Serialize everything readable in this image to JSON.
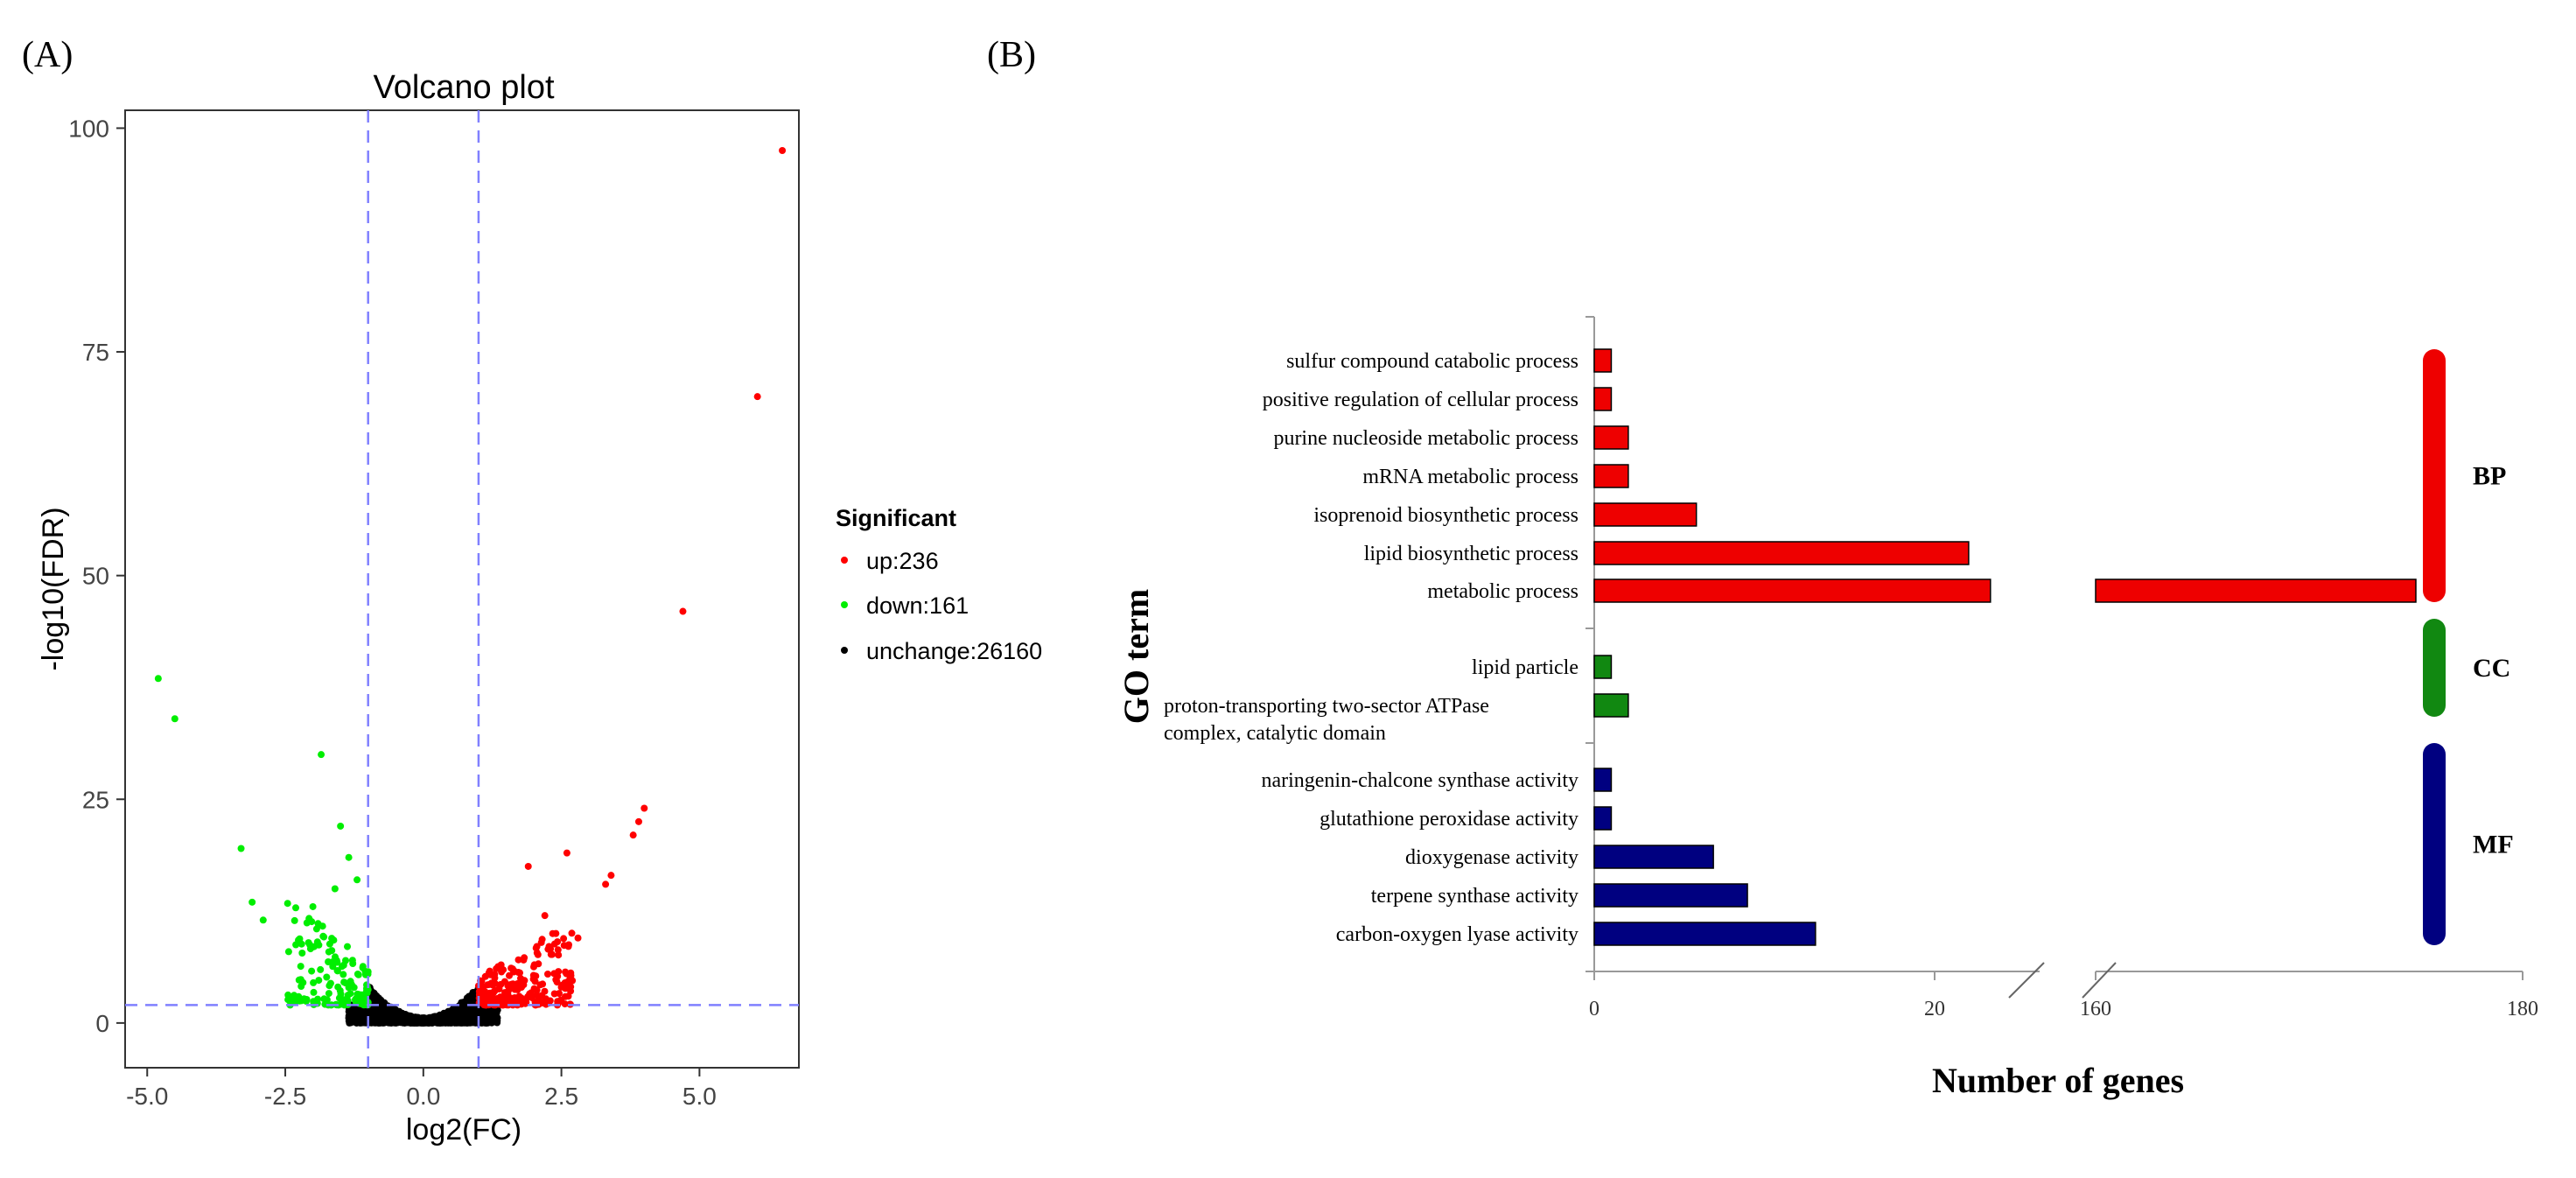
{
  "panel_a": {
    "label": "(A)",
    "chart_data": {
      "type": "scatter",
      "title": "Volcano plot",
      "xlabel": "log2(FC)",
      "ylabel": "-log10(FDR)",
      "xlim": [
        -5.4,
        6.8
      ],
      "ylim": [
        -5,
        102
      ],
      "xticks": [
        -5.0,
        -2.5,
        0.0,
        2.5,
        5.0
      ],
      "xtick_labels": [
        "-5.0",
        "-2.5",
        "0.0",
        "2.5",
        "5.0"
      ],
      "yticks": [
        0,
        25,
        50,
        75,
        100
      ],
      "ytick_labels": [
        "0",
        "25",
        "50",
        "75",
        "100"
      ],
      "thresholds": {
        "log2fc": [
          -1,
          1
        ],
        "neg_log10_fdr": 2
      },
      "legend": {
        "title": "Significant",
        "position": "right",
        "entries": [
          {
            "key": "up",
            "label": "up:236",
            "color": "#ff0000"
          },
          {
            "key": "down",
            "label": "down:161",
            "color": "#00ee00"
          },
          {
            "key": "unchange",
            "label": "unchange:26160",
            "color": "#000000"
          }
        ]
      },
      "notable_points": {
        "up": [
          [
            6.5,
            97.5
          ],
          [
            6.05,
            70
          ],
          [
            4.7,
            46
          ],
          [
            4.0,
            24
          ],
          [
            3.9,
            22.5
          ],
          [
            3.8,
            21
          ],
          [
            3.4,
            16.5
          ],
          [
            3.3,
            15.5
          ],
          [
            2.6,
            19
          ],
          [
            1.9,
            17.5
          ],
          [
            2.4,
            10
          ],
          [
            2.8,
            9.5
          ],
          [
            2.2,
            12
          ]
        ],
        "down": [
          [
            -4.8,
            38.5
          ],
          [
            -4.5,
            34
          ],
          [
            -1.85,
            30
          ],
          [
            -1.5,
            22
          ],
          [
            -3.3,
            19.5
          ],
          [
            -1.35,
            18.5
          ],
          [
            -3.1,
            13.5
          ],
          [
            -2.9,
            11.5
          ],
          [
            -2.0,
            13
          ],
          [
            -1.6,
            15
          ],
          [
            -1.2,
            16
          ]
        ]
      },
      "counts": {
        "up": 236,
        "down": 161,
        "unchange": 26160
      },
      "colors": {
        "up": "#ff0000",
        "down": "#00ee00",
        "unchange": "#000000",
        "threshold_line": "#8080ff"
      }
    }
  },
  "panel_b": {
    "label": "(B)",
    "chart_data": {
      "type": "bar",
      "orientation": "horizontal",
      "xlabel": "Number of genes",
      "ylabel": "GO term",
      "x_segments": [
        {
          "range": [
            0,
            24
          ],
          "ticks": [
            0,
            20
          ],
          "tick_labels": [
            "0",
            "20"
          ]
        },
        {
          "range": [
            160,
            180
          ],
          "ticks": [
            160,
            180
          ],
          "tick_labels": [
            "160",
            "180"
          ]
        }
      ],
      "axis_break": true,
      "groups": [
        {
          "name": "BP",
          "color": "#ee0000",
          "items": [
            {
              "label": "sulfur compound catabolic process",
              "value": 1
            },
            {
              "label": "positive regulation of cellular process",
              "value": 1
            },
            {
              "label": "purine nucleoside metabolic process",
              "value": 2
            },
            {
              "label": "mRNA metabolic process",
              "value": 2
            },
            {
              "label": "isoprenoid biosynthetic process",
              "value": 6
            },
            {
              "label": "lipid biosynthetic process",
              "value": 22
            },
            {
              "label": "metabolic process",
              "value": 175
            }
          ]
        },
        {
          "name": "CC",
          "color": "#118811",
          "items": [
            {
              "label": "lipid particle",
              "value": 1
            },
            {
              "label": "proton-transporting two-sector ATPase\ncomplex, catalytic domain",
              "value": 2
            }
          ]
        },
        {
          "name": "MF",
          "color": "#000080",
          "items": [
            {
              "label": "naringenin-chalcone synthase activity",
              "value": 1
            },
            {
              "label": "glutathione peroxidase activity",
              "value": 1
            },
            {
              "label": "dioxygenase activity",
              "value": 7
            },
            {
              "label": "terpene synthase activity",
              "value": 9
            },
            {
              "label": "carbon-oxygen lyase activity",
              "value": 13
            }
          ]
        }
      ]
    }
  }
}
